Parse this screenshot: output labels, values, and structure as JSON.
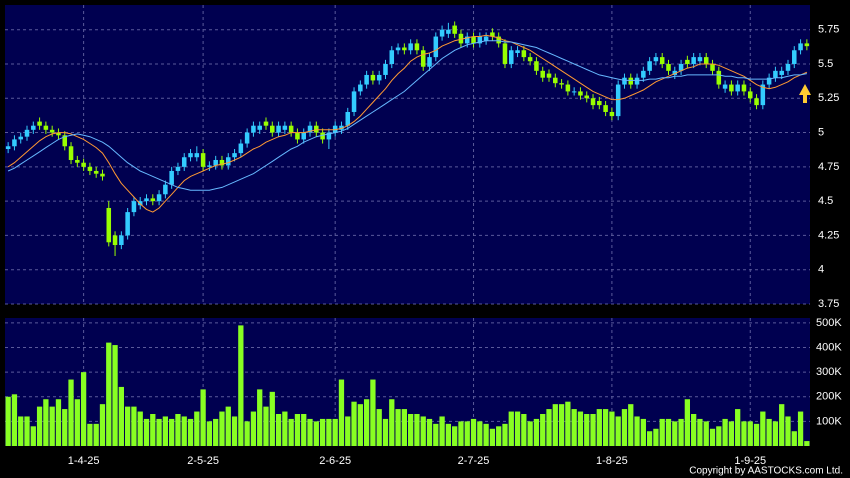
{
  "chart_data": {
    "type": "candlestick",
    "categories": [
      null,
      null,
      null,
      null,
      null,
      null,
      null,
      null,
      null,
      null,
      null,
      null,
      "1-4-25",
      null,
      null,
      null,
      null,
      null,
      null,
      null,
      null,
      null,
      null,
      null,
      null,
      null,
      null,
      null,
      null,
      null,
      null,
      "2-5-25",
      null,
      null,
      null,
      null,
      null,
      null,
      null,
      null,
      null,
      null,
      null,
      null,
      null,
      null,
      null,
      null,
      null,
      null,
      null,
      null,
      "2-6-25",
      null,
      null,
      null,
      null,
      null,
      null,
      null,
      null,
      null,
      null,
      null,
      null,
      null,
      null,
      null,
      null,
      null,
      null,
      null,
      null,
      null,
      "2-7-25",
      null,
      null,
      null,
      null,
      null,
      null,
      null,
      null,
      null,
      null,
      null,
      null,
      null,
      null,
      null,
      null,
      null,
      null,
      null,
      null,
      null,
      "1-8-25",
      null,
      null,
      null,
      null,
      null,
      null,
      null,
      null,
      null,
      null,
      null,
      null,
      null,
      null,
      null,
      null,
      null,
      null,
      null,
      null,
      null,
      "1-9-25",
      null,
      null,
      null,
      null,
      null,
      null,
      null,
      null,
      null
    ],
    "open": [
      4.88,
      4.9,
      4.95,
      4.97,
      5.02,
      5.08,
      5.05,
      5.02,
      5.0,
      4.98,
      4.9,
      4.8,
      4.78,
      4.75,
      4.72,
      4.7,
      4.45,
      4.25,
      4.18,
      4.25,
      4.42,
      4.47,
      4.5,
      4.52,
      4.5,
      4.55,
      4.62,
      4.72,
      4.75,
      4.82,
      4.82,
      4.85,
      4.75,
      4.76,
      4.8,
      4.76,
      4.82,
      4.85,
      4.92,
      5.0,
      5.02,
      5.08,
      5.05,
      5.0,
      5.02,
      5.05,
      5.0,
      4.95,
      5.0,
      5.05,
      5.0,
      4.95,
      5.0,
      5.02,
      5.05,
      5.15,
      5.3,
      5.35,
      5.42,
      5.38,
      5.42,
      5.5,
      5.6,
      5.62,
      5.6,
      5.65,
      5.6,
      5.48,
      5.55,
      5.7,
      5.72,
      5.78,
      5.72,
      5.65,
      5.7,
      5.65,
      5.67,
      5.73,
      5.7,
      5.65,
      5.5,
      5.58,
      5.6,
      5.55,
      5.52,
      5.45,
      5.43,
      5.4,
      5.36,
      5.35,
      5.3,
      5.3,
      5.27,
      5.25,
      5.23,
      5.2,
      5.15,
      5.12,
      5.35,
      5.4,
      5.35,
      5.4,
      5.45,
      5.52,
      5.55,
      5.5,
      5.42,
      5.45,
      5.53,
      5.5,
      5.52,
      5.55,
      5.5,
      5.45,
      5.32,
      5.35,
      5.3,
      5.35,
      5.3,
      5.25,
      5.2,
      5.35,
      5.4,
      5.42,
      5.45,
      5.5,
      5.6,
      5.65
    ],
    "high": [
      4.93,
      4.98,
      5.0,
      5.05,
      5.08,
      5.11,
      5.08,
      5.05,
      5.03,
      5.01,
      4.93,
      4.83,
      4.81,
      4.78,
      4.75,
      4.73,
      4.5,
      4.28,
      4.28,
      4.45,
      4.53,
      4.53,
      4.55,
      4.55,
      4.58,
      4.65,
      4.75,
      4.78,
      4.85,
      4.88,
      4.9,
      4.88,
      4.79,
      4.83,
      4.83,
      4.85,
      4.88,
      4.95,
      5.03,
      5.08,
      5.08,
      5.11,
      5.08,
      5.08,
      5.08,
      5.08,
      5.03,
      5.03,
      5.08,
      5.08,
      5.03,
      5.03,
      5.08,
      5.08,
      5.18,
      5.33,
      5.38,
      5.45,
      5.45,
      5.45,
      5.53,
      5.63,
      5.65,
      5.65,
      5.68,
      5.68,
      5.63,
      5.58,
      5.73,
      5.78,
      5.8,
      5.81,
      5.75,
      5.73,
      5.73,
      5.73,
      5.73,
      5.76,
      5.73,
      5.68,
      5.63,
      5.63,
      5.63,
      5.58,
      5.55,
      5.48,
      5.46,
      5.43,
      5.39,
      5.38,
      5.33,
      5.33,
      5.3,
      5.28,
      5.26,
      5.23,
      5.18,
      5.38,
      5.43,
      5.43,
      5.43,
      5.48,
      5.55,
      5.58,
      5.58,
      5.53,
      5.48,
      5.53,
      5.56,
      5.58,
      5.58,
      5.58,
      5.53,
      5.48,
      5.38,
      5.38,
      5.38,
      5.38,
      5.33,
      5.28,
      5.38,
      5.43,
      5.48,
      5.48,
      5.53,
      5.63,
      5.68,
      5.68
    ],
    "low": [
      4.85,
      4.87,
      4.92,
      4.94,
      4.99,
      5.02,
      4.99,
      4.97,
      4.95,
      4.87,
      4.77,
      4.75,
      4.72,
      4.69,
      4.67,
      4.65,
      4.17,
      4.1,
      4.15,
      4.22,
      4.39,
      4.44,
      4.47,
      4.47,
      4.47,
      4.52,
      4.59,
      4.69,
      4.72,
      4.79,
      4.79,
      4.72,
      4.72,
      4.73,
      4.73,
      4.73,
      4.79,
      4.82,
      4.89,
      4.97,
      4.99,
      5.02,
      4.97,
      4.97,
      4.99,
      4.97,
      4.92,
      4.92,
      4.97,
      4.97,
      4.92,
      4.88,
      4.97,
      4.99,
      5.02,
      5.12,
      5.27,
      5.32,
      5.35,
      5.35,
      5.39,
      5.47,
      5.57,
      5.57,
      5.57,
      5.57,
      5.45,
      5.45,
      5.52,
      5.67,
      5.69,
      5.69,
      5.62,
      5.62,
      5.62,
      5.62,
      5.64,
      5.67,
      5.62,
      5.47,
      5.47,
      5.55,
      5.52,
      5.49,
      5.42,
      5.37,
      5.37,
      5.33,
      5.32,
      5.27,
      5.27,
      5.24,
      5.22,
      5.17,
      5.17,
      5.12,
      5.09,
      5.09,
      5.32,
      5.32,
      5.32,
      5.37,
      5.42,
      5.49,
      5.47,
      5.42,
      5.39,
      5.42,
      5.47,
      5.47,
      5.49,
      5.47,
      5.42,
      5.32,
      5.29,
      5.27,
      5.27,
      5.27,
      5.22,
      5.17,
      5.17,
      5.32,
      5.37,
      5.39,
      5.42,
      5.47,
      5.57,
      5.6
    ],
    "close": [
      4.9,
      4.95,
      4.97,
      5.02,
      5.05,
      5.05,
      5.02,
      5.0,
      4.98,
      4.9,
      4.8,
      4.78,
      4.75,
      4.72,
      4.7,
      4.68,
      4.2,
      4.18,
      4.25,
      4.42,
      4.5,
      4.5,
      4.52,
      4.5,
      4.55,
      4.62,
      4.72,
      4.75,
      4.82,
      4.85,
      4.85,
      4.75,
      4.76,
      4.8,
      4.76,
      4.82,
      4.85,
      4.92,
      5.0,
      5.05,
      5.05,
      5.05,
      5.0,
      5.05,
      5.05,
      5.0,
      4.95,
      5.0,
      5.05,
      5.0,
      4.95,
      5.0,
      5.05,
      5.05,
      5.15,
      5.3,
      5.35,
      5.42,
      5.38,
      5.42,
      5.5,
      5.6,
      5.62,
      5.6,
      5.65,
      5.6,
      5.48,
      5.55,
      5.7,
      5.75,
      5.75,
      5.72,
      5.65,
      5.7,
      5.65,
      5.7,
      5.7,
      5.7,
      5.65,
      5.5,
      5.6,
      5.6,
      5.55,
      5.52,
      5.45,
      5.4,
      5.4,
      5.36,
      5.35,
      5.3,
      5.3,
      5.27,
      5.25,
      5.2,
      5.2,
      5.15,
      5.12,
      5.35,
      5.4,
      5.35,
      5.4,
      5.45,
      5.52,
      5.55,
      5.5,
      5.45,
      5.45,
      5.5,
      5.5,
      5.55,
      5.55,
      5.5,
      5.45,
      5.35,
      5.35,
      5.3,
      5.35,
      5.3,
      5.25,
      5.2,
      5.35,
      5.4,
      5.45,
      5.45,
      5.5,
      5.6,
      5.65,
      5.63
    ],
    "up_color": "#33ccff",
    "down_color": "#99ff00",
    "lines": [
      {
        "color": "#ff9933",
        "values": [
          4.75,
          4.78,
          4.82,
          4.86,
          4.9,
          4.94,
          4.97,
          4.99,
          5.0,
          5.0,
          4.99,
          4.97,
          4.95,
          4.92,
          4.89,
          4.85,
          4.78,
          4.7,
          4.63,
          4.58,
          4.53,
          4.48,
          4.44,
          4.42,
          4.45,
          4.5,
          4.55,
          4.6,
          4.65,
          4.68,
          4.7,
          4.72,
          4.74,
          4.76,
          4.77,
          4.78,
          4.8,
          4.82,
          4.85,
          4.88,
          4.9,
          4.93,
          4.95,
          4.97,
          4.98,
          5.0,
          5.0,
          5.0,
          5.01,
          5.02,
          5.02,
          5.02,
          5.02,
          5.03,
          5.05,
          5.08,
          5.12,
          5.17,
          5.22,
          5.27,
          5.32,
          5.38,
          5.43,
          5.47,
          5.52,
          5.55,
          5.57,
          5.58,
          5.6,
          5.63,
          5.65,
          5.67,
          5.68,
          5.69,
          5.7,
          5.7,
          5.71,
          5.7,
          5.69,
          5.67,
          5.66,
          5.64,
          5.62,
          5.6,
          5.57,
          5.54,
          5.51,
          5.48,
          5.45,
          5.42,
          5.39,
          5.36,
          5.33,
          5.3,
          5.28,
          5.26,
          5.24,
          5.24,
          5.25,
          5.27,
          5.29,
          5.31,
          5.34,
          5.37,
          5.39,
          5.41,
          5.43,
          5.45,
          5.47,
          5.48,
          5.5,
          5.5,
          5.5,
          5.49,
          5.47,
          5.45,
          5.43,
          5.41,
          5.38,
          5.35,
          5.33,
          5.32,
          5.33,
          5.35,
          5.37,
          5.4,
          5.42,
          5.44
        ]
      },
      {
        "color": "#66b8ff",
        "values": [
          4.72,
          4.74,
          4.77,
          4.8,
          4.83,
          4.86,
          4.89,
          4.92,
          4.95,
          4.97,
          4.98,
          4.99,
          4.98,
          4.97,
          4.95,
          4.93,
          4.9,
          4.86,
          4.82,
          4.78,
          4.75,
          4.72,
          4.7,
          4.68,
          4.66,
          4.64,
          4.62,
          4.6,
          4.59,
          4.58,
          4.58,
          4.58,
          4.58,
          4.59,
          4.6,
          4.62,
          4.64,
          4.66,
          4.68,
          4.7,
          4.73,
          4.76,
          4.79,
          4.82,
          4.85,
          4.88,
          4.9,
          4.93,
          4.95,
          4.97,
          4.98,
          4.99,
          5.0,
          5.01,
          5.03,
          5.06,
          5.09,
          5.12,
          5.15,
          5.18,
          5.21,
          5.24,
          5.27,
          5.3,
          5.34,
          5.38,
          5.42,
          5.46,
          5.5,
          5.54,
          5.57,
          5.6,
          5.62,
          5.64,
          5.65,
          5.66,
          5.67,
          5.67,
          5.67,
          5.66,
          5.66,
          5.65,
          5.64,
          5.63,
          5.62,
          5.6,
          5.58,
          5.56,
          5.54,
          5.52,
          5.5,
          5.48,
          5.46,
          5.44,
          5.42,
          5.41,
          5.4,
          5.39,
          5.38,
          5.38,
          5.38,
          5.38,
          5.39,
          5.39,
          5.4,
          5.4,
          5.41,
          5.41,
          5.42,
          5.42,
          5.42,
          5.42,
          5.42,
          5.42,
          5.41,
          5.41,
          5.4,
          5.4,
          5.39,
          5.39,
          5.39,
          5.39,
          5.4,
          5.4,
          5.41,
          5.42,
          5.42,
          5.43
        ]
      }
    ],
    "ylim": [
      3.75,
      5.93
    ],
    "yticks": [
      3.75,
      4,
      4.25,
      4.5,
      4.75,
      5,
      5.25,
      5.5,
      5.75
    ],
    "grid": true,
    "volume": {
      "color": "#88ff22",
      "ylim": [
        0,
        520000
      ],
      "yticks": [
        {
          "value": 100000,
          "label": "100K"
        },
        {
          "value": 200000,
          "label": "200K"
        },
        {
          "value": 300000,
          "label": "300K"
        },
        {
          "value": 400000,
          "label": "400K"
        },
        {
          "value": 500000,
          "label": "500K"
        }
      ],
      "values": [
        200000,
        210000,
        120000,
        120000,
        80000,
        160000,
        190000,
        160000,
        190000,
        150000,
        270000,
        190000,
        300000,
        90000,
        90000,
        170000,
        420000,
        410000,
        240000,
        160000,
        160000,
        140000,
        110000,
        130000,
        110000,
        120000,
        110000,
        130000,
        120000,
        110000,
        140000,
        230000,
        100000,
        110000,
        140000,
        160000,
        120000,
        490000,
        100000,
        140000,
        230000,
        160000,
        220000,
        130000,
        140000,
        110000,
        130000,
        130000,
        110000,
        100000,
        110000,
        110000,
        110000,
        270000,
        120000,
        180000,
        170000,
        190000,
        270000,
        150000,
        110000,
        190000,
        150000,
        150000,
        130000,
        130000,
        120000,
        110000,
        90000,
        120000,
        90000,
        80000,
        100000,
        100000,
        110000,
        100000,
        90000,
        70000,
        80000,
        90000,
        140000,
        140000,
        130000,
        100000,
        110000,
        130000,
        150000,
        170000,
        170000,
        180000,
        150000,
        140000,
        130000,
        130000,
        150000,
        150000,
        140000,
        120000,
        150000,
        170000,
        120000,
        110000,
        60000,
        70000,
        110000,
        110000,
        100000,
        110000,
        190000,
        130000,
        110000,
        100000,
        70000,
        80000,
        110000,
        100000,
        150000,
        100000,
        100000,
        90000,
        140000,
        110000,
        100000,
        170000,
        120000,
        60000,
        140000,
        20000
      ]
    },
    "footer": "Copyright by AASTOCKS.com Ltd."
  }
}
